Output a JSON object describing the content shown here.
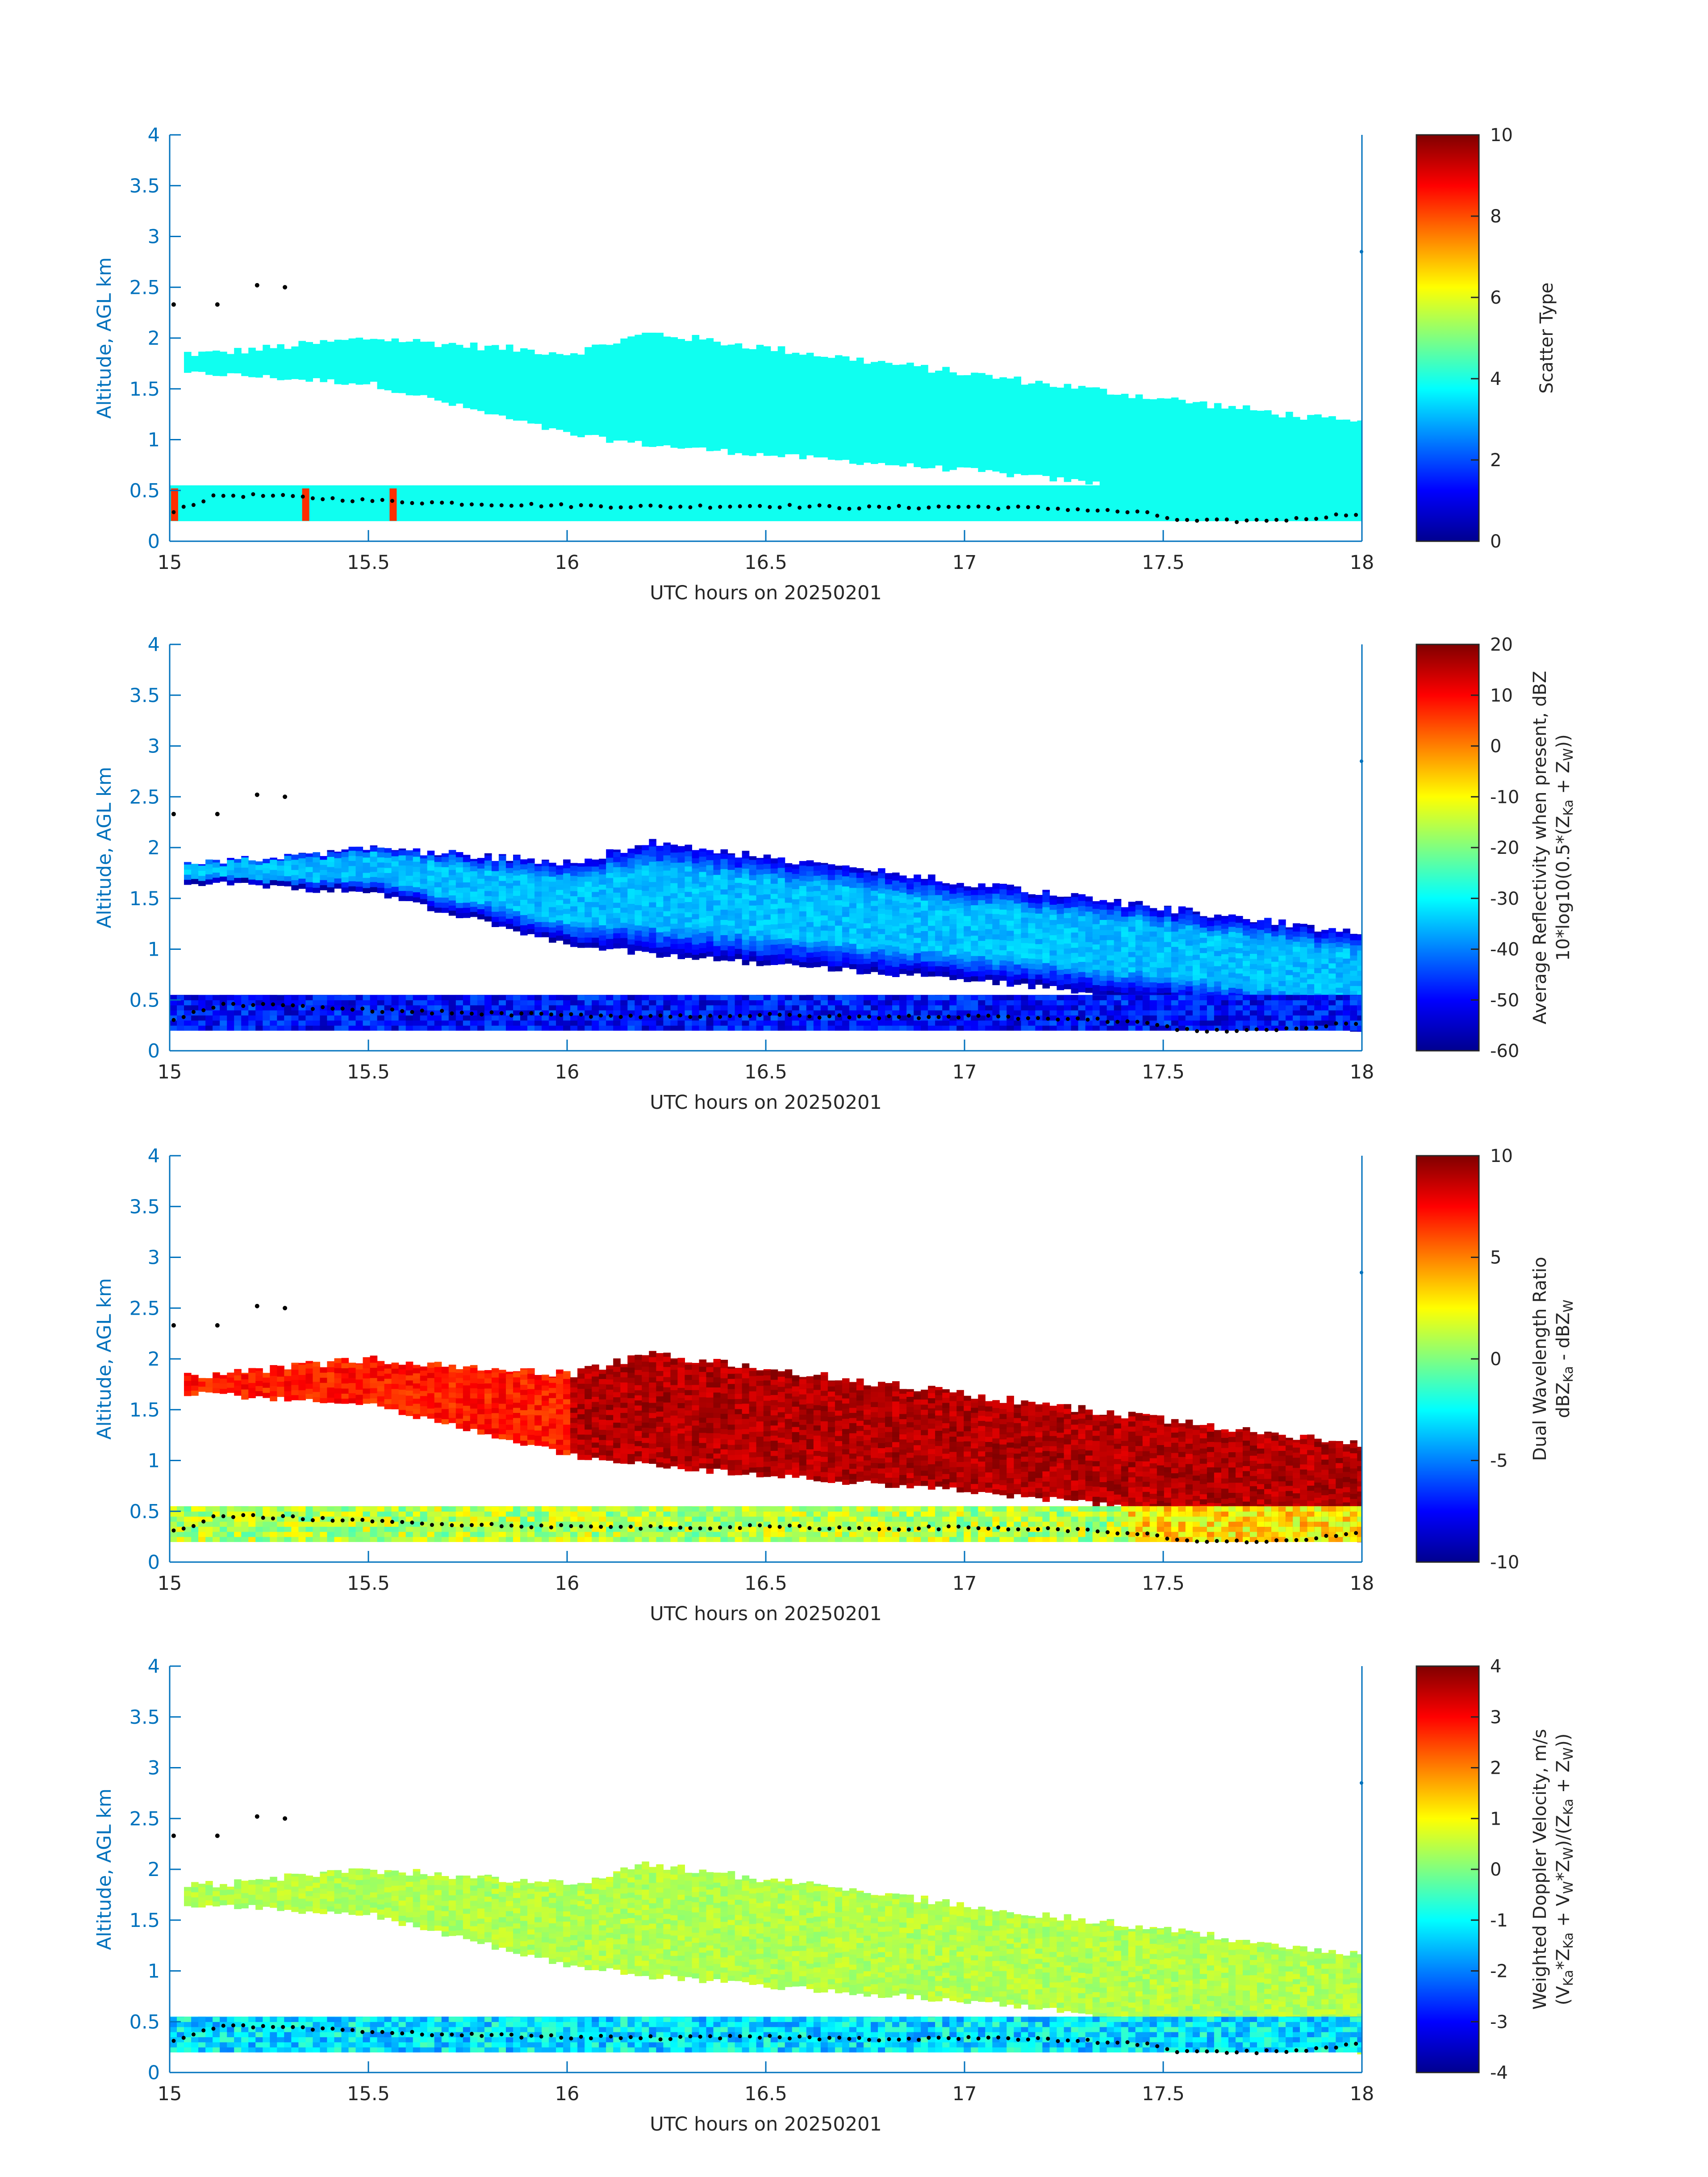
{
  "figure": {
    "xlabel": "UTC hours on 20250201",
    "ylabel": "Altitude, AGL km",
    "x_ticks": [
      "15",
      "15.5",
      "16",
      "16.5",
      "17",
      "17.5",
      "18"
    ],
    "y_ticks": [
      "0",
      "0.5",
      "1",
      "1.5",
      "2",
      "2.5",
      "3",
      "3.5",
      "4"
    ]
  },
  "chart_data": [
    {
      "type": "heatmap",
      "colorbar_label": "Scatter Type",
      "colorbar_ticks": [
        "0",
        "2",
        "4",
        "6",
        "8",
        "10"
      ],
      "clim": [
        0,
        10
      ],
      "xlim": [
        15,
        18
      ],
      "ylim": [
        0,
        4
      ],
      "upper_layer": {
        "x": [
          15.1,
          15.5,
          16.0,
          16.2,
          16.5,
          17.0,
          17.5,
          18.0
        ],
        "top_km": [
          1.85,
          2.0,
          1.85,
          2.05,
          1.9,
          1.65,
          1.4,
          1.15
        ],
        "base_km": [
          1.65,
          1.55,
          1.05,
          0.95,
          0.85,
          0.7,
          0.5,
          0.2
        ],
        "value": 3.9
      },
      "low_layer": {
        "base_km": 0.2,
        "top_km": 0.55,
        "value": 3.9
      },
      "patches": [
        {
          "x": 15.01,
          "value": 8.3
        },
        {
          "x": 15.34,
          "value": 8.3
        },
        {
          "x": 15.56,
          "value": 8.3
        }
      ],
      "grid": false
    },
    {
      "type": "heatmap",
      "colorbar_label": "Average Reflectivity when present, dBZ",
      "colorbar_label_2": "10*log10(0.5*(Z",
      "colorbar_label_2_sub1": "Ka",
      "colorbar_label_2_mid": " + Z",
      "colorbar_label_2_sub2": "W",
      "colorbar_label_2_end": "))",
      "colorbar_ticks": [
        "-60",
        "-50",
        "-40",
        "-30",
        "-20",
        "-10",
        "0",
        "10",
        "20"
      ],
      "clim": [
        -60,
        20
      ],
      "xlim": [
        15,
        18
      ],
      "ylim": [
        0,
        4
      ],
      "upper_layer_center_value": -35,
      "upper_layer_edge_value": -55,
      "low_layer_value": -52,
      "grid": false
    },
    {
      "type": "heatmap",
      "colorbar_label": "Dual Wavelength Ratio",
      "colorbar_label_2": "dBZ",
      "colorbar_label_2_sub1": "Ka",
      "colorbar_label_2_mid": " - dBZ",
      "colorbar_label_2_sub2": "W",
      "colorbar_label_2_end": "",
      "colorbar_ticks": [
        "-10",
        "-5",
        "0",
        "5",
        "10"
      ],
      "clim": [
        -10,
        10
      ],
      "xlim": [
        15,
        18
      ],
      "ylim": [
        0,
        4
      ],
      "upper_layer_value": 9,
      "low_layer_value": 1,
      "grid": false
    },
    {
      "type": "heatmap",
      "colorbar_label": "Weighted Doppler Velocity, m/s",
      "colorbar_label_2": "(V",
      "colorbar_label_2_sub1": "Ka",
      "colorbar_label_2_mid": "*Z",
      "colorbar_label_2_sub2": "Ka",
      "colorbar_label_2_end": " + V",
      "colorbar_label_2_sub3": "W",
      "colorbar_label_2_end2": "*Z",
      "colorbar_label_2_sub4": "W",
      "colorbar_label_2_end3": ")/(Z",
      "colorbar_label_2_sub5": "Ka",
      "colorbar_label_2_end4": " + Z",
      "colorbar_label_2_sub6": "W",
      "colorbar_label_2_end5": "))",
      "colorbar_ticks": [
        "-4",
        "-3",
        "-2",
        "-1",
        "0",
        "1",
        "2",
        "3",
        "4"
      ],
      "clim": [
        -4,
        4
      ],
      "xlim": [
        15,
        18
      ],
      "ylim": [
        0,
        4
      ],
      "upper_layer_value": 0.4,
      "low_layer_value": -1.2,
      "grid": false
    }
  ],
  "cloud_base_dots": {
    "x": [
      15.01,
      15.12,
      15.22,
      15.29,
      15.5,
      15.75,
      16.0,
      16.25,
      16.5,
      16.75,
      17.0,
      17.25,
      17.45,
      17.55,
      17.7,
      17.85,
      18.0
    ],
    "altitude_km": [
      0.3,
      0.45,
      0.45,
      0.44,
      0.4,
      0.37,
      0.35,
      0.34,
      0.35,
      0.33,
      0.34,
      0.32,
      0.28,
      0.2,
      0.2,
      0.22,
      0.28
    ]
  },
  "high_dots": {
    "x": [
      15.01,
      15.12,
      15.22,
      15.29
    ],
    "altitude_km": [
      2.33,
      2.33,
      2.52,
      2.5
    ]
  },
  "colors": {
    "axis": "#0072BD",
    "text": "#262626",
    "dot": "#000000"
  }
}
